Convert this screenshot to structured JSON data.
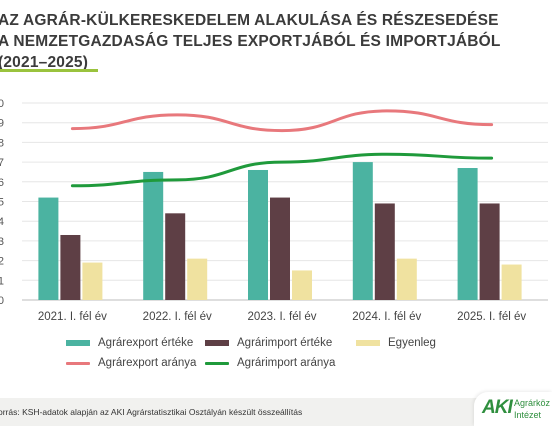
{
  "header": {
    "title_lines": [
      "AZ AGRÁR-KÜLKERESKEDELEM ALAKULÁSA ÉS RÉSZESEDÉSE",
      "A NEMZETGAZDASÁG TELJES EXPORTJÁBÓL ÉS IMPORTJÁBÓL",
      "(2021–2025)"
    ]
  },
  "chart_data": {
    "type": "bar",
    "categories": [
      "2021. I. fél év",
      "2022. I. fél év",
      "2023. I. fél év",
      "2024. I. fél év",
      "2025. I. fél év"
    ],
    "axis_ticks": [
      "0",
      "1",
      "2",
      "3",
      "4",
      "5",
      "6",
      "7",
      "8",
      "9",
      "0"
    ],
    "ylim": [
      0,
      10
    ],
    "grid": true,
    "legend_position": "bottom",
    "series": [
      {
        "name": "Agrárexport értéke",
        "kind": "bar",
        "color": "#4bb3a1",
        "values": [
          5.2,
          6.5,
          6.6,
          7.0,
          6.7
        ]
      },
      {
        "name": "Agrárimport értéke",
        "kind": "bar",
        "color": "#5e3f45",
        "values": [
          3.3,
          4.4,
          5.2,
          4.9,
          4.9
        ]
      },
      {
        "name": "Egyenleg",
        "kind": "bar",
        "color": "#f0e2a0",
        "values": [
          1.9,
          2.1,
          1.5,
          2.1,
          1.8
        ]
      },
      {
        "name": "Agrárexport aránya",
        "kind": "line",
        "color": "#e8787c",
        "values": [
          8.7,
          9.4,
          8.6,
          9.6,
          8.9
        ]
      },
      {
        "name": "Agrárimport aránya",
        "kind": "line",
        "color": "#1f9a3b",
        "values": [
          5.8,
          6.1,
          7.0,
          7.4,
          7.2
        ]
      }
    ]
  },
  "footer": {
    "source": "orrás: KSH-adatok alapján az AKI Agrárstatisztikai Osztályán készült összeállítás",
    "logo_mark": "AKI",
    "logo_line1": "Agrárköz",
    "logo_line2": "Intézet"
  }
}
